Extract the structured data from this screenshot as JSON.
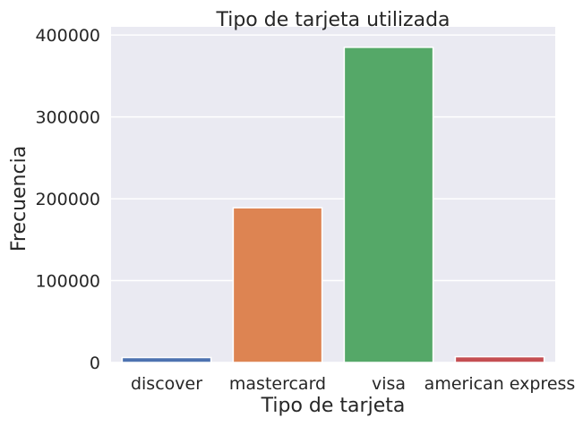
{
  "chart_data": {
    "type": "bar",
    "title": "Tipo de tarjeta utilizada",
    "xlabel": "Tipo de tarjeta",
    "ylabel": "Frecuencia",
    "categories": [
      "discover",
      "mastercard",
      "visa",
      "american express"
    ],
    "values": [
      6000,
      189000,
      385000,
      7000
    ],
    "colors": [
      "#4c72b0",
      "#dd8452",
      "#55a868",
      "#c44e52"
    ],
    "ylim": [
      0,
      410000
    ],
    "yticks": [
      0,
      100000,
      200000,
      300000,
      400000
    ],
    "ytick_labels": [
      "0",
      "100000",
      "200000",
      "300000",
      "400000"
    ],
    "grid": "horizontal",
    "style": "seaborn-darkgrid"
  }
}
